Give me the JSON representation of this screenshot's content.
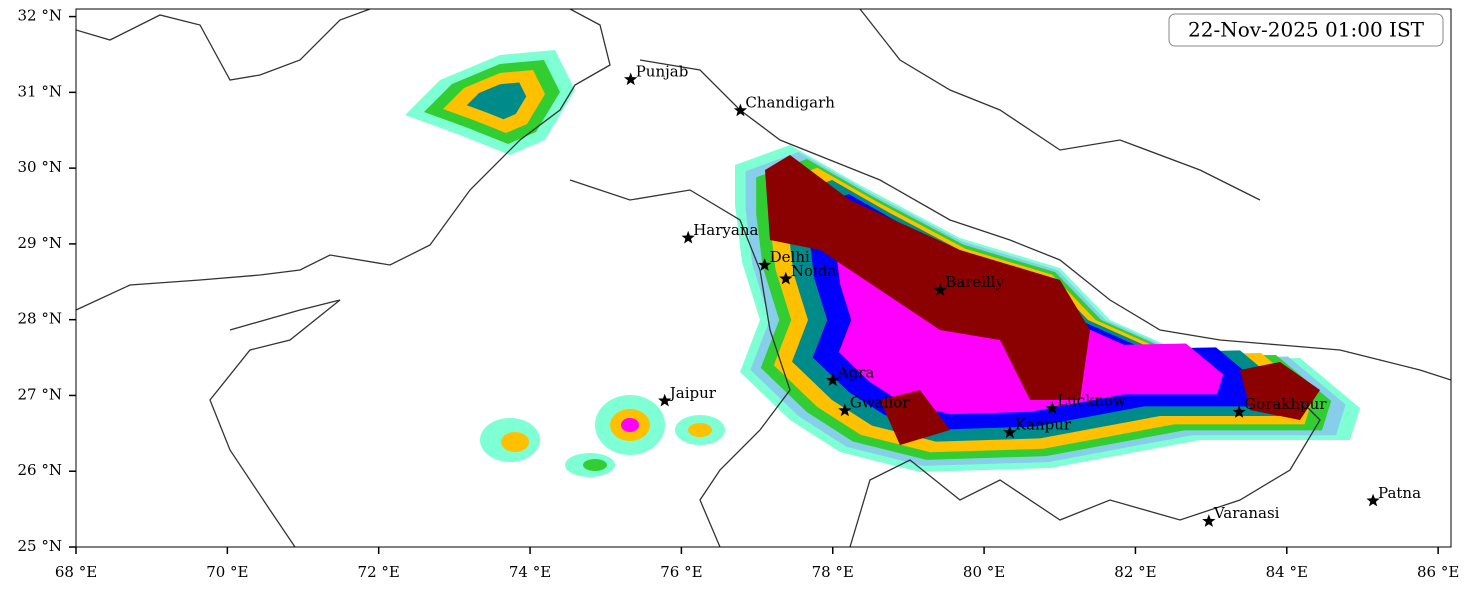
{
  "map": {
    "timestamp": "22-Nov-2025 01:00 IST",
    "xlim": [
      68,
      86.17
    ],
    "ylim": [
      25,
      32.1
    ],
    "xticks": [
      {
        "value": 68,
        "label": "68 °E"
      },
      {
        "value": 70,
        "label": "70 °E"
      },
      {
        "value": 72,
        "label": "72 °E"
      },
      {
        "value": 74,
        "label": "74 °E"
      },
      {
        "value": 76,
        "label": "76 °E"
      },
      {
        "value": 78,
        "label": "78 °E"
      },
      {
        "value": 80,
        "label": "80 °E"
      },
      {
        "value": 82,
        "label": "82 °E"
      },
      {
        "value": 84,
        "label": "84 °E"
      },
      {
        "value": 86,
        "label": "86 °E"
      }
    ],
    "yticks": [
      {
        "value": 25,
        "label": "25 °N"
      },
      {
        "value": 26,
        "label": "26 °N"
      },
      {
        "value": 27,
        "label": "27 °N"
      },
      {
        "value": 28,
        "label": "28 °N"
      },
      {
        "value": 29,
        "label": "29 °N"
      },
      {
        "value": 30,
        "label": "30 °N"
      },
      {
        "value": 31,
        "label": "31 °N"
      },
      {
        "value": 32,
        "label": "32 °N"
      }
    ],
    "cities": [
      {
        "name": "Punjab",
        "lon": 75.33,
        "lat": 31.17
      },
      {
        "name": "Chandigarh",
        "lon": 76.78,
        "lat": 30.76
      },
      {
        "name": "Haryana",
        "lon": 76.09,
        "lat": 29.08
      },
      {
        "name": "Delhi",
        "lon": 77.1,
        "lat": 28.72
      },
      {
        "name": "Noida",
        "lon": 77.38,
        "lat": 28.54
      },
      {
        "name": "Bareilly",
        "lon": 79.42,
        "lat": 28.39
      },
      {
        "name": "Agra",
        "lon": 78.0,
        "lat": 27.2
      },
      {
        "name": "Jaipur",
        "lon": 75.78,
        "lat": 26.93
      },
      {
        "name": "Gwalior",
        "lon": 78.16,
        "lat": 26.8
      },
      {
        "name": "Lucknow",
        "lon": 80.9,
        "lat": 26.83
      },
      {
        "name": "Kanpur",
        "lon": 80.34,
        "lat": 26.51
      },
      {
        "name": "Gorakhpur",
        "lon": 83.37,
        "lat": 26.78
      },
      {
        "name": "Varanasi",
        "lon": 82.97,
        "lat": 25.34
      },
      {
        "name": "Patna",
        "lon": 85.14,
        "lat": 25.61
      }
    ]
  }
}
